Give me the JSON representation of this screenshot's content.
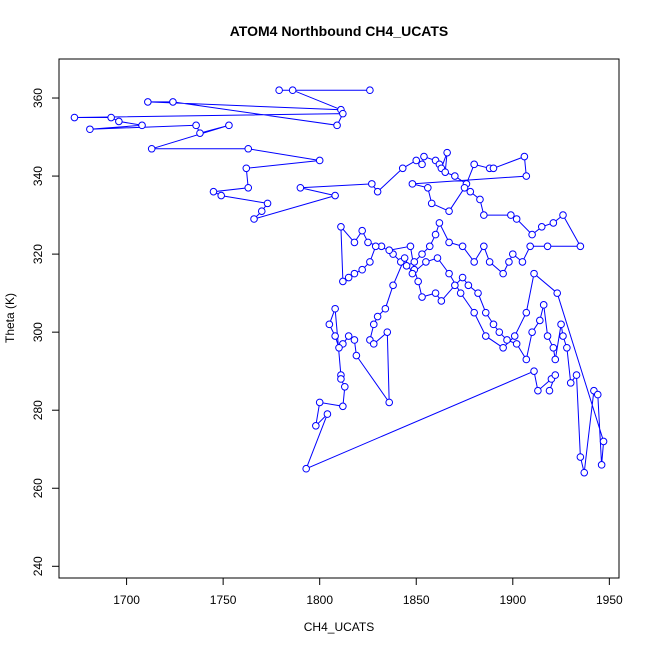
{
  "chart_data": {
    "type": "line",
    "title": "ATOM4 Northbound CH4_UCATS",
    "xlabel": "CH4_UCATS",
    "ylabel": "Theta (K)",
    "xlim": [
      1665,
      1955
    ],
    "ylim": [
      237,
      370
    ],
    "xticks": [
      1700,
      1750,
      1800,
      1850,
      1900,
      1950
    ],
    "yticks": [
      240,
      260,
      280,
      300,
      320,
      340,
      360
    ],
    "grid": false,
    "legend": "none",
    "markers": "open-circle",
    "color": "#0000ff",
    "series": [
      {
        "values": [
          [
            1826,
            362
          ],
          [
            1779,
            362
          ],
          [
            1786,
            362
          ],
          [
            1811,
            357
          ],
          [
            1711,
            359
          ],
          [
            1724,
            359
          ],
          [
            1809,
            353
          ],
          [
            1812,
            356
          ],
          [
            1673,
            355
          ],
          [
            1692,
            355
          ],
          [
            1696,
            354
          ],
          [
            1708,
            353
          ],
          [
            1681,
            352
          ],
          [
            1736,
            353
          ],
          [
            1738,
            351
          ],
          [
            1753,
            353
          ],
          [
            1713,
            347
          ],
          [
            1763,
            347
          ],
          [
            1800,
            344
          ],
          [
            1762,
            342
          ],
          [
            1763,
            337
          ],
          [
            1745,
            336
          ],
          [
            1749,
            335
          ],
          [
            1773,
            333
          ],
          [
            1770,
            331
          ],
          [
            1766,
            329
          ],
          [
            1808,
            335
          ],
          [
            1790,
            337
          ],
          [
            1827,
            338
          ],
          [
            1830,
            336
          ],
          [
            1843,
            342
          ],
          [
            1850,
            344
          ],
          [
            1853,
            343
          ],
          [
            1854,
            345
          ],
          [
            1860,
            344
          ],
          [
            1862,
            343
          ],
          [
            1863,
            342
          ],
          [
            1866,
            346
          ],
          [
            1865,
            341
          ],
          [
            1870,
            340
          ],
          [
            1876,
            338
          ],
          [
            1880,
            343
          ],
          [
            1888,
            342
          ],
          [
            1890,
            342
          ],
          [
            1906,
            345
          ],
          [
            1907,
            340
          ],
          [
            1848,
            338
          ],
          [
            1856,
            337
          ],
          [
            1858,
            333
          ],
          [
            1867,
            331
          ],
          [
            1875,
            337
          ],
          [
            1878,
            336
          ],
          [
            1883,
            334
          ],
          [
            1885,
            330
          ],
          [
            1899,
            330
          ],
          [
            1902,
            329
          ],
          [
            1910,
            325
          ],
          [
            1915,
            327
          ],
          [
            1921,
            328
          ],
          [
            1926,
            330
          ],
          [
            1935,
            322
          ],
          [
            1918,
            322
          ],
          [
            1909,
            322
          ],
          [
            1905,
            318
          ],
          [
            1900,
            320
          ],
          [
            1898,
            318
          ],
          [
            1895,
            315
          ],
          [
            1888,
            318
          ],
          [
            1885,
            322
          ],
          [
            1880,
            318
          ],
          [
            1874,
            322
          ],
          [
            1867,
            323
          ],
          [
            1862,
            328
          ],
          [
            1860,
            325
          ],
          [
            1857,
            322
          ],
          [
            1853,
            320
          ],
          [
            1849,
            318
          ],
          [
            1845,
            317
          ],
          [
            1842,
            318
          ],
          [
            1838,
            320
          ],
          [
            1832,
            322
          ],
          [
            1829,
            322
          ],
          [
            1826,
            318
          ],
          [
            1822,
            316
          ],
          [
            1818,
            315
          ],
          [
            1815,
            314
          ],
          [
            1812,
            313
          ],
          [
            1811,
            327
          ],
          [
            1818,
            323
          ],
          [
            1822,
            326
          ],
          [
            1825,
            323
          ],
          [
            1836,
            321
          ],
          [
            1847,
            322
          ],
          [
            1849,
            316
          ],
          [
            1851,
            313
          ],
          [
            1853,
            309
          ],
          [
            1860,
            310
          ],
          [
            1863,
            308
          ],
          [
            1870,
            312
          ],
          [
            1874,
            314
          ],
          [
            1877,
            312
          ],
          [
            1882,
            310
          ],
          [
            1886,
            305
          ],
          [
            1890,
            302
          ],
          [
            1893,
            300
          ],
          [
            1897,
            298
          ],
          [
            1902,
            297
          ],
          [
            1907,
            293
          ],
          [
            1910,
            300
          ],
          [
            1914,
            303
          ],
          [
            1916,
            307
          ],
          [
            1918,
            299
          ],
          [
            1921,
            296
          ],
          [
            1922,
            293
          ],
          [
            1925,
            302
          ],
          [
            1926,
            299
          ],
          [
            1928,
            296
          ],
          [
            1930,
            287
          ],
          [
            1933,
            289
          ],
          [
            1935,
            268
          ],
          [
            1937,
            264
          ],
          [
            1942,
            285
          ],
          [
            1944,
            284
          ],
          [
            1946,
            266
          ],
          [
            1947,
            272
          ],
          [
            1923,
            310
          ],
          [
            1911,
            315
          ],
          [
            1907,
            305
          ],
          [
            1901,
            299
          ],
          [
            1895,
            296
          ],
          [
            1886,
            299
          ],
          [
            1880,
            305
          ],
          [
            1873,
            310
          ],
          [
            1867,
            315
          ],
          [
            1861,
            319
          ],
          [
            1855,
            318
          ],
          [
            1848,
            315
          ],
          [
            1844,
            319
          ],
          [
            1838,
            312
          ],
          [
            1834,
            306
          ],
          [
            1830,
            304
          ],
          [
            1828,
            302
          ],
          [
            1826,
            298
          ],
          [
            1828,
            297
          ],
          [
            1835,
            300
          ],
          [
            1836,
            282
          ],
          [
            1819,
            294
          ],
          [
            1818,
            298
          ],
          [
            1815,
            299
          ],
          [
            1812,
            297
          ],
          [
            1810,
            296
          ],
          [
            1808,
            299
          ],
          [
            1805,
            302
          ],
          [
            1808,
            306
          ],
          [
            1811,
            289
          ],
          [
            1811,
            288
          ],
          [
            1813,
            286
          ],
          [
            1812,
            281
          ],
          [
            1800,
            282
          ],
          [
            1798,
            276
          ],
          [
            1804,
            279
          ],
          [
            1793,
            265
          ],
          [
            1911,
            290
          ],
          [
            1913,
            285
          ],
          [
            1920,
            288
          ],
          [
            1922,
            289
          ],
          [
            1919,
            285
          ]
        ]
      }
    ]
  }
}
